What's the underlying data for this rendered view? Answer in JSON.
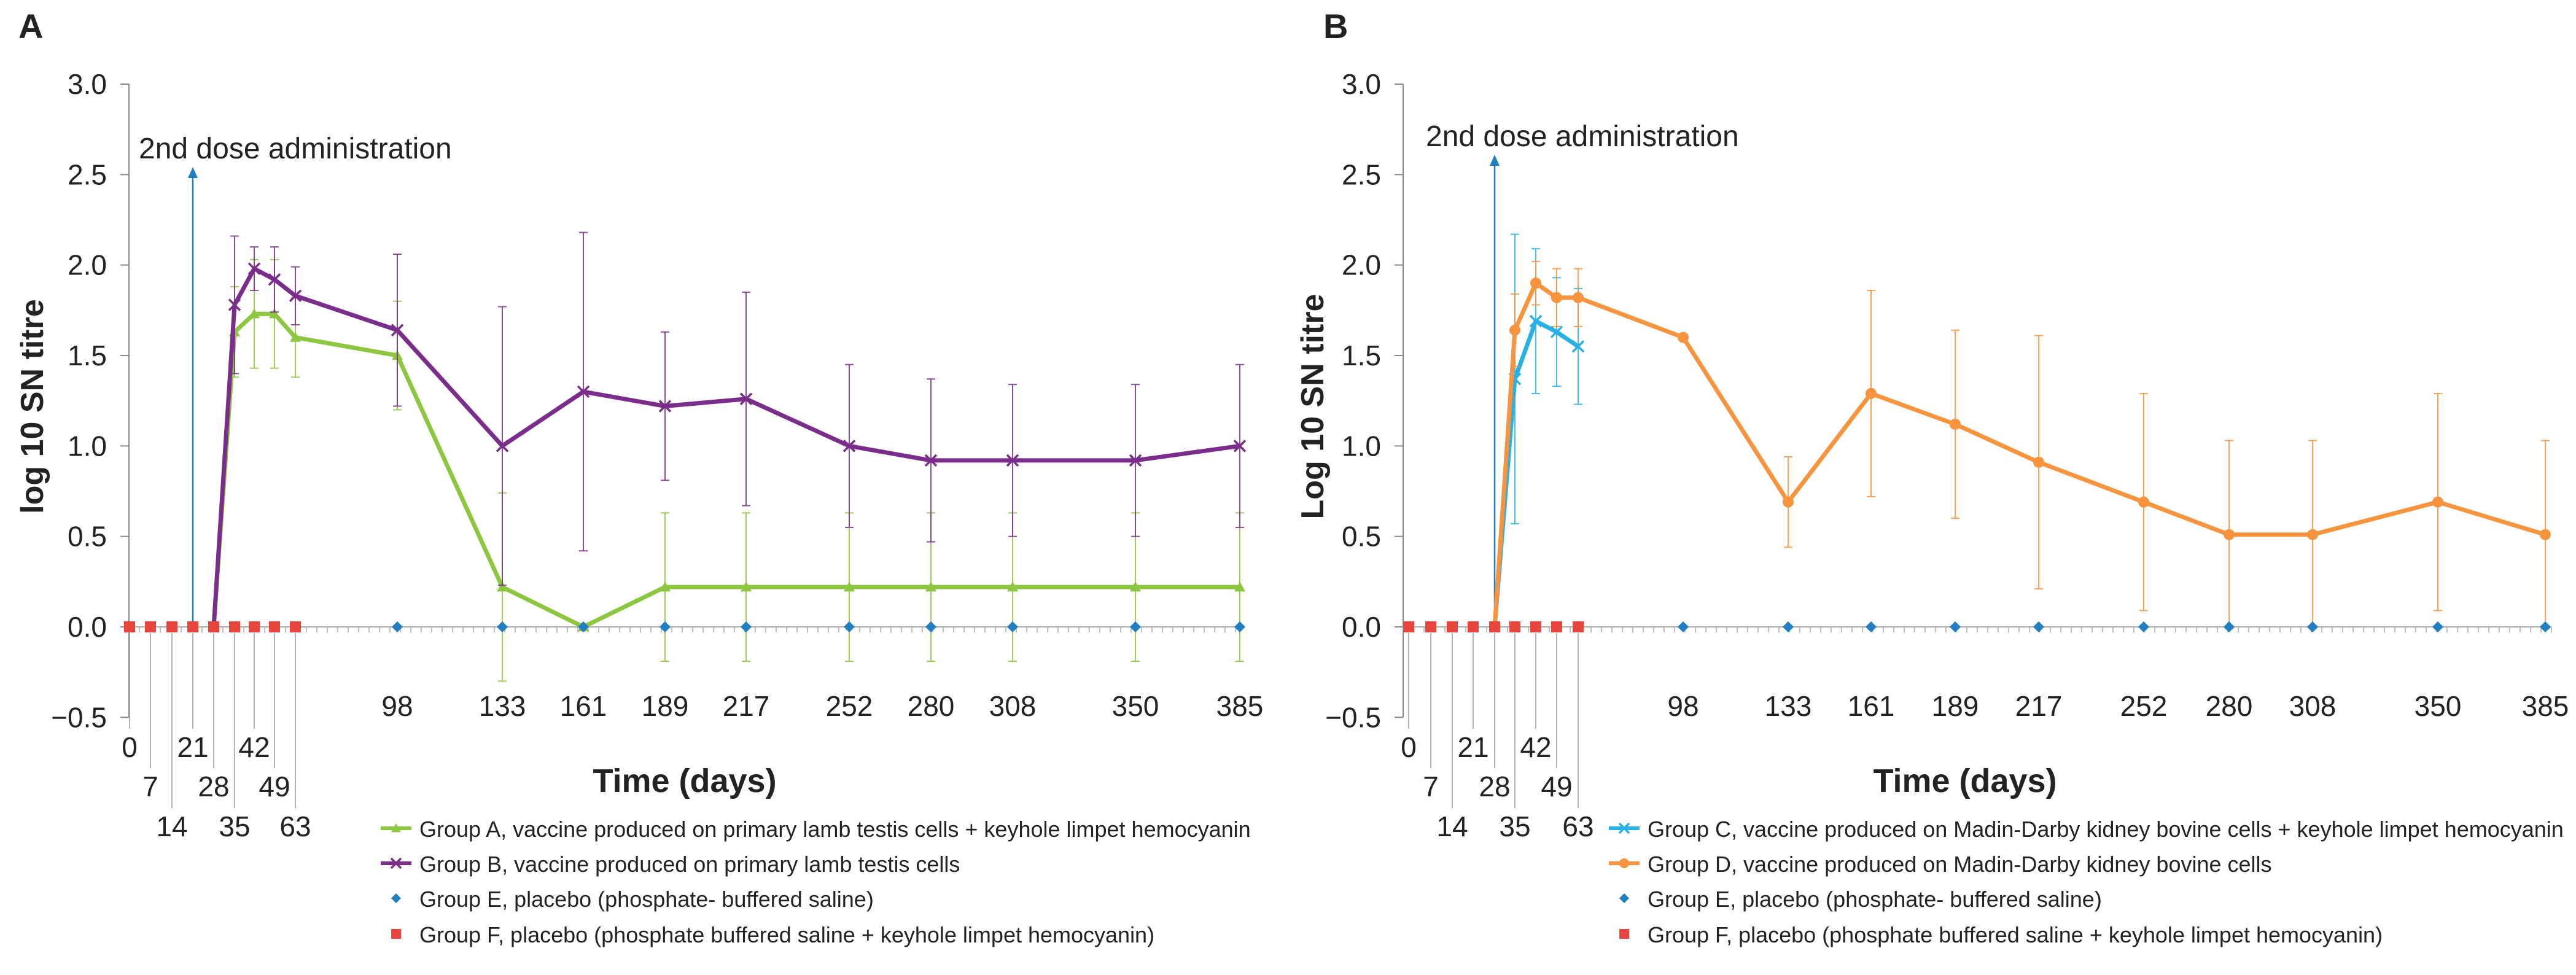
{
  "panels": [
    {
      "letter": "A",
      "annotation": "2nd dose administration",
      "legend": [
        {
          "label": "Group A, vaccine produced on primary lamb testis cells + keyhole limpet hemocyanin",
          "color": "#8dc63f",
          "marker": "triangle"
        },
        {
          "label": "Group B, vaccine produced on primary lamb testis cells",
          "color": "#7b2d8b",
          "marker": "cross"
        },
        {
          "label": "Group E, placebo (phosphate- buffered saline)",
          "color": "#1f7fc1",
          "marker": "diamond"
        },
        {
          "label": "Group F, placebo (phosphate buffered saline + keyhole limpet hemocyanin)",
          "color": "#e8453c",
          "marker": "square"
        }
      ]
    },
    {
      "letter": "B",
      "annotation": "2nd dose administration",
      "legend": [
        {
          "label": "Group C, vaccine produced on Madin-Darby kidney bovine cells + keyhole limpet hemocyanin",
          "color": "#29b1e6",
          "marker": "cross"
        },
        {
          "label": "Group D, vaccine produced on Madin-Darby kidney bovine cells",
          "color": "#f7943d",
          "marker": "circle"
        },
        {
          "label": "Group E, placebo (phosphate- buffered saline)",
          "color": "#1f7fc1",
          "marker": "diamond"
        },
        {
          "label": "Group F, placebo (phosphate buffered saline + keyhole limpet hemocyanin)",
          "color": "#e8453c",
          "marker": "square"
        }
      ]
    }
  ],
  "chart_data": [
    {
      "type": "line",
      "panel": "A",
      "xlabel": "Time (days)",
      "ylabel": "log 10  SN titre",
      "ylim": [
        -0.5,
        3.0
      ],
      "yticks": [
        "−0.5",
        "0.0",
        "0.5",
        "1.0",
        "1.5",
        "2.0",
        "2.5",
        "3.0"
      ],
      "x_ticks_low": [
        "0",
        "7",
        "14",
        "21",
        "28",
        "35",
        "42",
        "49",
        "63"
      ],
      "x_ticks_high": [
        "98",
        "133",
        "161",
        "189",
        "217",
        "252",
        "280",
        "308",
        "350",
        "385"
      ],
      "dose_day": 21,
      "series": [
        {
          "name": "Group A, vaccine produced on primary lamb testis cells + keyhole limpet hemocyanin",
          "color": "#8dc63f",
          "marker": "triangle",
          "x": [
            28,
            35,
            42,
            49,
            63,
            98,
            133,
            161,
            189,
            217,
            252,
            280,
            308,
            350,
            385
          ],
          "y": [
            0,
            1.63,
            1.73,
            1.73,
            1.6,
            1.5,
            0.22,
            0,
            0.22,
            0.22,
            0.22,
            0.22,
            0.22,
            0.22,
            0.22
          ],
          "err": [
            0,
            0.25,
            0.3,
            0.3,
            0.22,
            0.3,
            0.52,
            0,
            0.41,
            0.41,
            0.41,
            0.41,
            0.41,
            0.41,
            0.41
          ]
        },
        {
          "name": "Group B, vaccine produced on primary lamb testis cells",
          "color": "#7b2d8b",
          "marker": "cross",
          "x": [
            28,
            35,
            42,
            49,
            63,
            98,
            133,
            161,
            189,
            217,
            252,
            280,
            308,
            350,
            385
          ],
          "y": [
            0,
            1.78,
            1.98,
            1.92,
            1.83,
            1.64,
            1.0,
            1.3,
            1.22,
            1.26,
            1.0,
            0.92,
            0.92,
            0.92,
            1.0
          ],
          "err": [
            0,
            0.38,
            0.12,
            0.18,
            0.16,
            0.42,
            0.77,
            0.88,
            0.41,
            0.59,
            0.45,
            0.45,
            0.42,
            0.42,
            0.45
          ]
        },
        {
          "name": "Group E, placebo (phosphate- buffered saline)",
          "color": "#1f7fc1",
          "marker": "diamond",
          "no_line": true,
          "x": [
            98,
            133,
            161,
            189,
            217,
            252,
            280,
            308,
            350,
            385
          ],
          "y": [
            0,
            0,
            0,
            0,
            0,
            0,
            0,
            0,
            0,
            0
          ]
        },
        {
          "name": "Group F, placebo (phosphate buffered saline + keyhole limpet hemocyanin)",
          "color": "#e8453c",
          "marker": "square",
          "no_line": true,
          "x": [
            0,
            7,
            14,
            21,
            28,
            35,
            42,
            49,
            63
          ],
          "y": [
            0,
            0,
            0,
            0,
            0,
            0,
            0,
            0,
            0
          ]
        }
      ]
    },
    {
      "type": "line",
      "panel": "B",
      "xlabel": "Time (days)",
      "ylabel": "Log 10  SN titre",
      "ylim": [
        -0.5,
        3.0
      ],
      "yticks": [
        "−0.5",
        "0.0",
        "0.5",
        "1.0",
        "1.5",
        "2.0",
        "2.5",
        "3.0"
      ],
      "x_ticks_low": [
        "0",
        "7",
        "14",
        "21",
        "28",
        "35",
        "42",
        "49",
        "63"
      ],
      "x_ticks_high": [
        "98",
        "133",
        "161",
        "189",
        "217",
        "252",
        "280",
        "308",
        "350",
        "385"
      ],
      "dose_day": 28,
      "series": [
        {
          "name": "Group C, vaccine produced on Madin-Darby kidney bovine cells + keyhole limpet hemocyanin",
          "color": "#29b1e6",
          "marker": "cross",
          "x": [
            28,
            35,
            42,
            49,
            63
          ],
          "y": [
            0,
            1.37,
            1.69,
            1.63,
            1.55
          ],
          "err": [
            0,
            0.8,
            0.4,
            0.3,
            0.32
          ]
        },
        {
          "name": "Group D, vaccine produced on Madin-Darby kidney bovine cells",
          "color": "#f7943d",
          "marker": "circle",
          "x": [
            28,
            35,
            42,
            49,
            63,
            98,
            133,
            161,
            189,
            217,
            252,
            280,
            308,
            350,
            385
          ],
          "y": [
            0,
            1.64,
            1.9,
            1.82,
            1.82,
            1.6,
            0.69,
            1.29,
            1.12,
            0.91,
            0.69,
            0.51,
            0.51,
            0.69,
            0.51
          ],
          "err": [
            0,
            0.2,
            0.12,
            0.16,
            0.16,
            0,
            0.25,
            0.57,
            0.52,
            0.7,
            0.6,
            0.52,
            0.52,
            0.6,
            0.52
          ]
        },
        {
          "name": "Group E, placebo (phosphate- buffered saline)",
          "color": "#1f7fc1",
          "marker": "diamond",
          "no_line": true,
          "x": [
            98,
            133,
            161,
            189,
            217,
            252,
            280,
            308,
            350,
            385
          ],
          "y": [
            0,
            0,
            0,
            0,
            0,
            0,
            0,
            0,
            0,
            0
          ]
        },
        {
          "name": "Group F, placebo (phosphate buffered saline + keyhole limpet hemocyanin)",
          "color": "#e8453c",
          "marker": "square",
          "no_line": true,
          "x": [
            0,
            7,
            14,
            21,
            28,
            35,
            42,
            49,
            63
          ],
          "y": [
            0,
            0,
            0,
            0,
            0,
            0,
            0,
            0,
            0
          ]
        }
      ]
    }
  ]
}
